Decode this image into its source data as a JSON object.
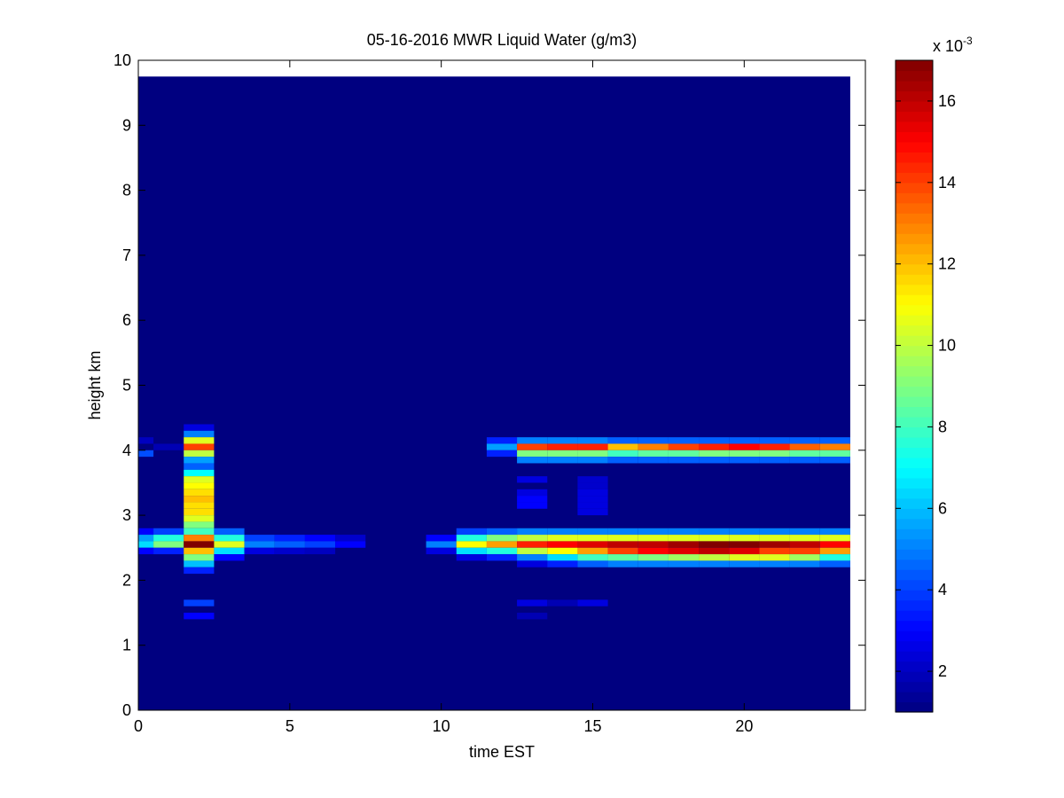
{
  "chart_data": {
    "type": "heatmap",
    "title": "05-16-2016 MWR Liquid Water (g/m3)",
    "xlabel": "time EST",
    "ylabel": "height km",
    "xlim": [
      0,
      24
    ],
    "ylim": [
      0,
      10
    ],
    "x_ticks": [
      0,
      5,
      10,
      15,
      20
    ],
    "y_ticks": [
      0,
      1,
      2,
      3,
      4,
      5,
      6,
      7,
      8,
      9,
      10
    ],
    "colormap": "jet",
    "colorbar": {
      "label": "x 10",
      "exponent": "-3",
      "range": [
        1,
        17
      ],
      "ticks": [
        2,
        4,
        6,
        8,
        10,
        12,
        14,
        16
      ]
    },
    "units": "1e-3 g/m3",
    "time_bins_hours": [
      0,
      1,
      2,
      3,
      4,
      5,
      6,
      7,
      8,
      9,
      10,
      11,
      12,
      13,
      14,
      15,
      16,
      17,
      18,
      19,
      20,
      21,
      22,
      23
    ],
    "height_bins_km": [
      1.4,
      1.6,
      2.0,
      2.1,
      2.2,
      2.3,
      2.4,
      2.5,
      2.6,
      2.7,
      2.8,
      2.9,
      3.0,
      3.1,
      3.2,
      3.3,
      3.4,
      3.5,
      3.6,
      3.7,
      3.8,
      3.9,
      4.0,
      4.1,
      4.2,
      4.3
    ],
    "nonbackground_cells_note_free": null,
    "cells": [
      [
        0,
        3.9,
        4.2
      ],
      [
        0,
        4.1,
        2.0
      ],
      [
        0,
        2.7,
        3.0
      ],
      [
        0,
        2.6,
        5.5
      ],
      [
        0,
        2.5,
        6.5
      ],
      [
        0,
        2.4,
        3.0
      ],
      [
        1,
        2.7,
        4.0
      ],
      [
        1,
        2.6,
        7.5
      ],
      [
        1,
        2.5,
        9.0
      ],
      [
        1,
        2.4,
        3.5
      ],
      [
        1,
        4.0,
        1.8
      ],
      [
        2,
        4.3,
        2.5
      ],
      [
        2,
        4.2,
        5.0
      ],
      [
        2,
        4.1,
        10.5
      ],
      [
        2,
        4.0,
        14.0
      ],
      [
        2,
        3.9,
        10.0
      ],
      [
        2,
        3.8,
        5.5
      ],
      [
        2,
        3.7,
        4.5
      ],
      [
        2,
        3.6,
        7.0
      ],
      [
        2,
        3.5,
        10.5
      ],
      [
        2,
        3.4,
        11.0
      ],
      [
        2,
        3.3,
        11.5
      ],
      [
        2,
        3.2,
        12.0
      ],
      [
        2,
        3.1,
        11.5
      ],
      [
        2,
        3.0,
        11.5
      ],
      [
        2,
        2.9,
        10.5
      ],
      [
        2,
        2.8,
        9.0
      ],
      [
        2,
        2.7,
        8.0
      ],
      [
        2,
        2.6,
        13.0
      ],
      [
        2,
        2.5,
        17.0
      ],
      [
        2,
        2.4,
        12.0
      ],
      [
        2,
        2.3,
        9.0
      ],
      [
        2,
        2.2,
        6.0
      ],
      [
        2,
        2.1,
        3.5
      ],
      [
        2,
        1.6,
        4.0
      ],
      [
        2,
        1.4,
        3.0
      ],
      [
        3,
        2.7,
        4.5
      ],
      [
        3,
        2.6,
        7.5
      ],
      [
        3,
        2.5,
        10.5
      ],
      [
        3,
        2.4,
        6.5
      ],
      [
        3,
        2.3,
        3.0
      ],
      [
        4,
        2.6,
        4.0
      ],
      [
        4,
        2.5,
        5.0
      ],
      [
        4,
        2.4,
        2.5
      ],
      [
        5,
        2.6,
        3.5
      ],
      [
        5,
        2.5,
        4.5
      ],
      [
        5,
        2.4,
        2.2
      ],
      [
        6,
        2.6,
        3.0
      ],
      [
        6,
        2.5,
        4.0
      ],
      [
        6,
        2.4,
        2.0
      ],
      [
        7,
        2.6,
        2.2
      ],
      [
        7,
        2.5,
        3.0
      ],
      [
        10,
        2.6,
        3.0
      ],
      [
        10,
        2.5,
        5.0
      ],
      [
        10,
        2.4,
        2.5
      ],
      [
        11,
        2.7,
        4.0
      ],
      [
        11,
        2.6,
        7.5
      ],
      [
        11,
        2.5,
        11.0
      ],
      [
        11,
        2.4,
        6.5
      ],
      [
        11,
        2.3,
        2.5
      ],
      [
        12,
        2.7,
        4.5
      ],
      [
        12,
        2.6,
        9.0
      ],
      [
        12,
        2.5,
        12.5
      ],
      [
        12,
        2.4,
        7.5
      ],
      [
        12,
        2.3,
        3.5
      ],
      [
        12,
        4.1,
        3.5
      ],
      [
        12,
        4.0,
        5.5
      ],
      [
        12,
        3.9,
        3.5
      ],
      [
        13,
        2.7,
        5.0
      ],
      [
        13,
        2.6,
        10.0
      ],
      [
        13,
        2.5,
        14.5
      ],
      [
        13,
        2.4,
        10.0
      ],
      [
        13,
        2.3,
        5.0
      ],
      [
        13,
        2.2,
        2.5
      ],
      [
        13,
        4.1,
        5.0
      ],
      [
        13,
        4.0,
        14.0
      ],
      [
        13,
        3.9,
        9.0
      ],
      [
        13,
        3.8,
        5.0
      ],
      [
        13,
        3.5,
        2.5
      ],
      [
        13,
        3.3,
        2.5
      ],
      [
        13,
        3.2,
        3.0
      ],
      [
        13,
        3.1,
        3.0
      ],
      [
        13,
        1.6,
        2.5
      ],
      [
        13,
        1.4,
        1.8
      ],
      [
        14,
        2.7,
        5.0
      ],
      [
        14,
        2.6,
        10.5
      ],
      [
        14,
        2.5,
        15.0
      ],
      [
        14,
        2.4,
        11.0
      ],
      [
        14,
        2.3,
        6.5
      ],
      [
        14,
        2.2,
        3.5
      ],
      [
        14,
        4.1,
        5.0
      ],
      [
        14,
        4.0,
        14.5
      ],
      [
        14,
        3.9,
        9.0
      ],
      [
        14,
        3.8,
        5.0
      ],
      [
        14,
        1.6,
        1.8
      ],
      [
        15,
        2.7,
        5.0
      ],
      [
        15,
        2.6,
        10.5
      ],
      [
        15,
        2.5,
        15.5
      ],
      [
        15,
        2.4,
        12.5
      ],
      [
        15,
        2.3,
        8.0
      ],
      [
        15,
        2.2,
        4.5
      ],
      [
        15,
        4.1,
        5.0
      ],
      [
        15,
        4.0,
        14.5
      ],
      [
        15,
        3.9,
        9.0
      ],
      [
        15,
        3.8,
        5.0
      ],
      [
        15,
        3.5,
        2.2
      ],
      [
        15,
        3.4,
        2.2
      ],
      [
        15,
        3.3,
        2.5
      ],
      [
        15,
        3.2,
        2.5
      ],
      [
        15,
        3.1,
        2.5
      ],
      [
        15,
        3.0,
        2.5
      ],
      [
        15,
        1.6,
        2.5
      ],
      [
        16,
        2.7,
        5.0
      ],
      [
        16,
        2.6,
        10.5
      ],
      [
        16,
        2.5,
        16.0
      ],
      [
        16,
        2.4,
        14.0
      ],
      [
        16,
        2.3,
        8.5
      ],
      [
        16,
        2.2,
        5.0
      ],
      [
        16,
        4.1,
        4.5
      ],
      [
        16,
        4.0,
        12.0
      ],
      [
        16,
        3.9,
        8.0
      ],
      [
        16,
        3.8,
        4.5
      ],
      [
        17,
        2.7,
        5.0
      ],
      [
        17,
        2.6,
        10.5
      ],
      [
        17,
        2.5,
        16.0
      ],
      [
        17,
        2.4,
        15.0
      ],
      [
        17,
        2.3,
        9.0
      ],
      [
        17,
        2.2,
        5.0
      ],
      [
        17,
        4.1,
        4.5
      ],
      [
        17,
        4.0,
        13.0
      ],
      [
        17,
        3.9,
        8.5
      ],
      [
        17,
        3.8,
        4.5
      ],
      [
        18,
        2.7,
        5.0
      ],
      [
        18,
        2.6,
        10.5
      ],
      [
        18,
        2.5,
        16.5
      ],
      [
        18,
        2.4,
        15.5
      ],
      [
        18,
        2.3,
        9.5
      ],
      [
        18,
        2.2,
        5.0
      ],
      [
        18,
        4.1,
        4.5
      ],
      [
        18,
        4.0,
        14.0
      ],
      [
        18,
        3.9,
        8.5
      ],
      [
        18,
        3.8,
        4.5
      ],
      [
        19,
        2.7,
        5.0
      ],
      [
        19,
        2.6,
        10.5
      ],
      [
        19,
        2.5,
        17.0
      ],
      [
        19,
        2.4,
        16.0
      ],
      [
        19,
        2.3,
        10.0
      ],
      [
        19,
        2.2,
        5.0
      ],
      [
        19,
        4.1,
        4.5
      ],
      [
        19,
        4.0,
        14.5
      ],
      [
        19,
        3.9,
        9.0
      ],
      [
        19,
        3.8,
        4.5
      ],
      [
        20,
        2.7,
        5.0
      ],
      [
        20,
        2.6,
        10.5
      ],
      [
        20,
        2.5,
        17.0
      ],
      [
        20,
        2.4,
        15.5
      ],
      [
        20,
        2.3,
        10.5
      ],
      [
        20,
        2.2,
        5.0
      ],
      [
        20,
        4.1,
        4.5
      ],
      [
        20,
        4.0,
        15.0
      ],
      [
        20,
        3.9,
        9.0
      ],
      [
        20,
        3.8,
        4.5
      ],
      [
        21,
        2.7,
        5.0
      ],
      [
        21,
        2.6,
        10.5
      ],
      [
        21,
        2.5,
        16.5
      ],
      [
        21,
        2.4,
        14.0
      ],
      [
        21,
        2.3,
        10.5
      ],
      [
        21,
        2.2,
        5.0
      ],
      [
        21,
        4.1,
        4.5
      ],
      [
        21,
        4.0,
        14.5
      ],
      [
        21,
        3.9,
        9.0
      ],
      [
        21,
        3.8,
        4.5
      ],
      [
        22,
        2.7,
        5.0
      ],
      [
        22,
        2.6,
        10.5
      ],
      [
        22,
        2.5,
        16.0
      ],
      [
        22,
        2.4,
        14.0
      ],
      [
        22,
        2.3,
        9.5
      ],
      [
        22,
        2.2,
        5.0
      ],
      [
        22,
        4.1,
        4.5
      ],
      [
        22,
        4.0,
        13.5
      ],
      [
        22,
        3.9,
        8.5
      ],
      [
        22,
        3.8,
        4.5
      ],
      [
        23,
        2.7,
        5.0
      ],
      [
        23,
        2.6,
        10.5
      ],
      [
        23,
        2.5,
        15.0
      ],
      [
        23,
        2.4,
        12.5
      ],
      [
        23,
        2.3,
        7.5
      ],
      [
        23,
        2.2,
        4.5
      ],
      [
        23,
        4.1,
        4.5
      ],
      [
        23,
        4.0,
        13.0
      ],
      [
        23,
        3.9,
        8.5
      ],
      [
        23,
        3.8,
        4.5
      ]
    ],
    "background_value": 1.0,
    "data_extent_km": [
      0,
      9.75
    ],
    "time_extent_hours": [
      0,
      23.5
    ]
  }
}
